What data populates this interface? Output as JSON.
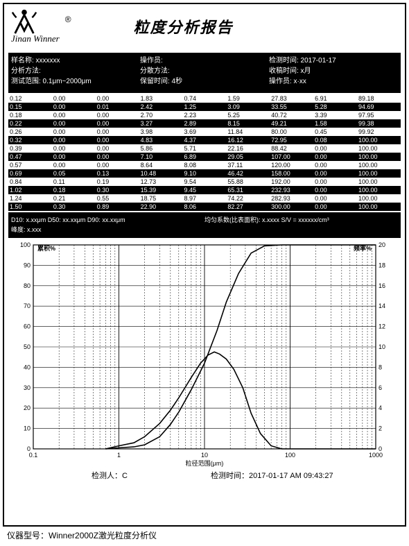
{
  "header": {
    "brand": "Jinan Winner",
    "registered": "®",
    "title": "粒度分析报告"
  },
  "info": {
    "col1": [
      "样名称: xxxxxxx",
      "分析方法:",
      "测试范围: 0.1μm~2000μm"
    ],
    "col2": [
      "操作员:",
      "分散方法:",
      "保留时间: 4秒"
    ],
    "col3": [
      "检测时间: 2017-01-17",
      "收稿时间: x月",
      "操作员: x·xx"
    ]
  },
  "data_table": {
    "col_groups": 3,
    "cols_per_group": 3,
    "rows": [
      {
        "style": "w",
        "cells": [
          "0.12",
          "0.00",
          "0.00",
          "1.83",
          "0.74",
          "1.59",
          "27.83",
          "6.91",
          "89.18"
        ]
      },
      {
        "style": "b",
        "cells": [
          "0.15",
          "0.00",
          "0.01",
          "2.42",
          "1.25",
          "3.09",
          "33.55",
          "5.28",
          "94.69"
        ]
      },
      {
        "style": "w",
        "cells": [
          "0.18",
          "0.00",
          "0.00",
          "2.70",
          "2.23",
          "5.25",
          "40.72",
          "3.39",
          "97.95"
        ]
      },
      {
        "style": "b",
        "cells": [
          "0.22",
          "0.00",
          "0.00",
          "3.27",
          "2.89",
          "8.15",
          "49.21",
          "1.58",
          "99.38"
        ]
      },
      {
        "style": "w",
        "cells": [
          "0.26",
          "0.00",
          "0.00",
          "3.98",
          "3.69",
          "11.84",
          "80.00",
          "0.45",
          "99.92"
        ]
      },
      {
        "style": "b",
        "cells": [
          "0.32",
          "0.00",
          "0.00",
          "4.83",
          "4.37",
          "16.12",
          "72.95",
          "0.08",
          "100.00"
        ]
      },
      {
        "style": "w",
        "cells": [
          "0.39",
          "0.00",
          "0.00",
          "5.86",
          "5.71",
          "22.16",
          "88.42",
          "0.00",
          "100.00"
        ]
      },
      {
        "style": "b",
        "cells": [
          "0.47",
          "0.00",
          "0.00",
          "7.10",
          "6.89",
          "29.05",
          "107.00",
          "0.00",
          "100.00"
        ]
      },
      {
        "style": "w",
        "cells": [
          "0.57",
          "0.00",
          "0.00",
          "8.64",
          "8.08",
          "37.11",
          "120.00",
          "0.00",
          "100.00"
        ]
      },
      {
        "style": "b",
        "cells": [
          "0.69",
          "0.05",
          "0.13",
          "10.48",
          "9.10",
          "46.42",
          "158.00",
          "0.00",
          "100.00"
        ]
      },
      {
        "style": "w",
        "cells": [
          "0.84",
          "0.11",
          "0.19",
          "12.73",
          "9.54",
          "55.88",
          "192.00",
          "0.00",
          "100.00"
        ]
      },
      {
        "style": "b",
        "cells": [
          "1.02",
          "0.18",
          "0.30",
          "15.39",
          "9.45",
          "65.31",
          "232.93",
          "0.00",
          "100.00"
        ]
      },
      {
        "style": "w",
        "cells": [
          "1.24",
          "0.21",
          "0.55",
          "18.75",
          "8.97",
          "74.22",
          "282.93",
          "0.00",
          "100.00"
        ]
      },
      {
        "style": "b",
        "cells": [
          "1.50",
          "0.30",
          "0.89",
          "22.90",
          "8.06",
          "82.27",
          "300.00",
          "0.00",
          "100.00"
        ]
      }
    ]
  },
  "summary": {
    "left": [
      "D10: x.xxμm    D50: xx.xxμm    D90: xx.xxμm",
      "峰度: x.xxx"
    ],
    "right": [
      "均匀系数(比表面积): x.xxxx    S/V = xxxxxx/cm³",
      ""
    ]
  },
  "chart": {
    "left_axis_label": "累积%",
    "right_axis_label": "频率%",
    "x_axis_label": "粒径范围(μm)",
    "xlim": [
      0.1,
      1000
    ],
    "x_ticks": [
      0.1,
      1,
      10,
      100,
      1000
    ],
    "left_ylim": [
      0,
      100
    ],
    "left_yticks": [
      0,
      10,
      20,
      30,
      40,
      50,
      60,
      70,
      80,
      90,
      100
    ],
    "right_ylim": [
      0,
      20
    ],
    "right_yticks": [
      0,
      2,
      4,
      6,
      8,
      10,
      12,
      14,
      16,
      18,
      20
    ],
    "cumulative_curve": [
      [
        0.7,
        0
      ],
      [
        1,
        0.5
      ],
      [
        1.5,
        1
      ],
      [
        2,
        2
      ],
      [
        3,
        6
      ],
      [
        4,
        12
      ],
      [
        5,
        18
      ],
      [
        7,
        29
      ],
      [
        10,
        42
      ],
      [
        14,
        58
      ],
      [
        18,
        72
      ],
      [
        25,
        86
      ],
      [
        35,
        96
      ],
      [
        50,
        99.5
      ],
      [
        80,
        100
      ],
      [
        1000,
        100
      ]
    ],
    "frequency_curve": [
      [
        0.7,
        0
      ],
      [
        1,
        0.3
      ],
      [
        1.5,
        0.6
      ],
      [
        2,
        1.2
      ],
      [
        3,
        2.5
      ],
      [
        4,
        3.8
      ],
      [
        5,
        5
      ],
      [
        7,
        7
      ],
      [
        9,
        8.4
      ],
      [
        11,
        9.2
      ],
      [
        13,
        9.5
      ],
      [
        15,
        9.3
      ],
      [
        18,
        8.8
      ],
      [
        22,
        7.8
      ],
      [
        28,
        6
      ],
      [
        35,
        3.5
      ],
      [
        45,
        1.5
      ],
      [
        60,
        0.3
      ],
      [
        80,
        0
      ],
      [
        1000,
        0
      ]
    ],
    "colors": {
      "bg": "#ffffff",
      "grid": "#000000",
      "curve": "#000000",
      "axis": "#000000"
    },
    "font_size": 9
  },
  "footer": {
    "operator_label": "检测人：",
    "operator_value": "C",
    "time_label": "检测时间：",
    "time_value": "2017-01-17 AM 09:43:27"
  },
  "instrument": {
    "label": "仪器型号：",
    "value": "Winner2000Z激光粒度分析仪"
  }
}
